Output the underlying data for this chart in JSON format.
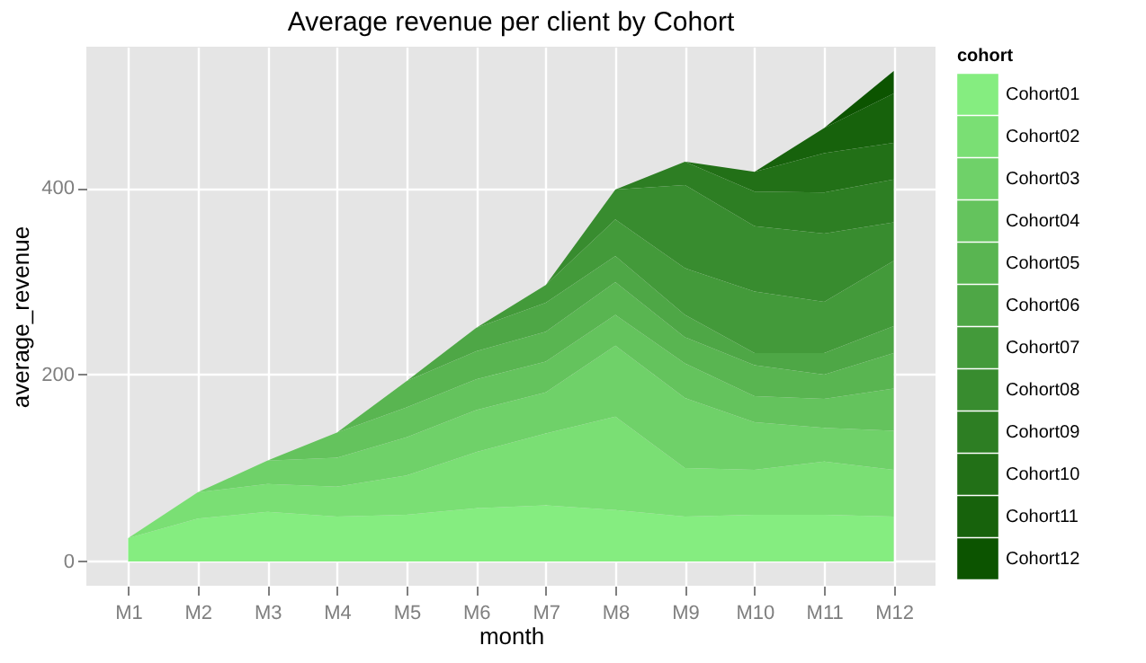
{
  "chart_data": {
    "type": "area",
    "stacked": true,
    "title": "Average revenue per client by Cohort",
    "xlabel": "month",
    "ylabel": "average_revenue",
    "legend_title": "cohort",
    "legend": "right",
    "grid": true,
    "categories": [
      "M1",
      "M2",
      "M3",
      "M4",
      "M5",
      "M6",
      "M7",
      "M8",
      "M9",
      "M10",
      "M11",
      "M12"
    ],
    "ylim": [
      -26,
      551
    ],
    "yticks": [
      0,
      200,
      400
    ],
    "series": [
      {
        "name": "Cohort01",
        "color": "#85ed80",
        "values": [
          25,
          46,
          53,
          48,
          50,
          57,
          60,
          55,
          48,
          50,
          50,
          48
        ]
      },
      {
        "name": "Cohort02",
        "color": "#7adf74",
        "values": [
          0,
          28,
          30,
          32,
          42,
          60,
          77,
          100,
          52,
          48,
          57,
          50
        ]
      },
      {
        "name": "Cohort03",
        "color": "#6fd169",
        "values": [
          0,
          0,
          25,
          31,
          41,
          45,
          44,
          76,
          75,
          51,
          36,
          42
        ]
      },
      {
        "name": "Cohort04",
        "color": "#64c35d",
        "values": [
          0,
          0,
          0,
          27,
          32,
          33,
          33,
          33,
          37,
          28,
          31,
          45
        ]
      },
      {
        "name": "Cohort05",
        "color": "#59b551",
        "values": [
          0,
          0,
          0,
          0,
          28,
          30,
          32,
          35,
          28,
          33,
          26,
          38
        ]
      },
      {
        "name": "Cohort06",
        "color": "#4ea746",
        "values": [
          0,
          0,
          0,
          0,
          0,
          25,
          31,
          28,
          24,
          13,
          23,
          29
        ]
      },
      {
        "name": "Cohort07",
        "color": "#439a3a",
        "values": [
          0,
          0,
          0,
          0,
          0,
          0,
          19,
          39,
          50,
          66,
          55,
          70
        ]
      },
      {
        "name": "Cohort08",
        "color": "#388c2f",
        "values": [
          0,
          0,
          0,
          0,
          0,
          0,
          0,
          32,
          89,
          70,
          73,
          41
        ]
      },
      {
        "name": "Cohort09",
        "color": "#2d7e23",
        "values": [
          0,
          0,
          0,
          0,
          0,
          0,
          0,
          0,
          25,
          37,
          44,
          46
        ]
      },
      {
        "name": "Cohort10",
        "color": "#227017",
        "values": [
          0,
          0,
          0,
          0,
          0,
          0,
          0,
          0,
          0,
          21,
          42,
          39
        ]
      },
      {
        "name": "Cohort11",
        "color": "#17620c",
        "values": [
          0,
          0,
          0,
          0,
          0,
          0,
          0,
          0,
          0,
          0,
          27,
          53
        ]
      },
      {
        "name": "Cohort12",
        "color": "#0c5400",
        "values": [
          0,
          0,
          0,
          0,
          0,
          0,
          0,
          0,
          0,
          0,
          0,
          24
        ]
      }
    ]
  }
}
